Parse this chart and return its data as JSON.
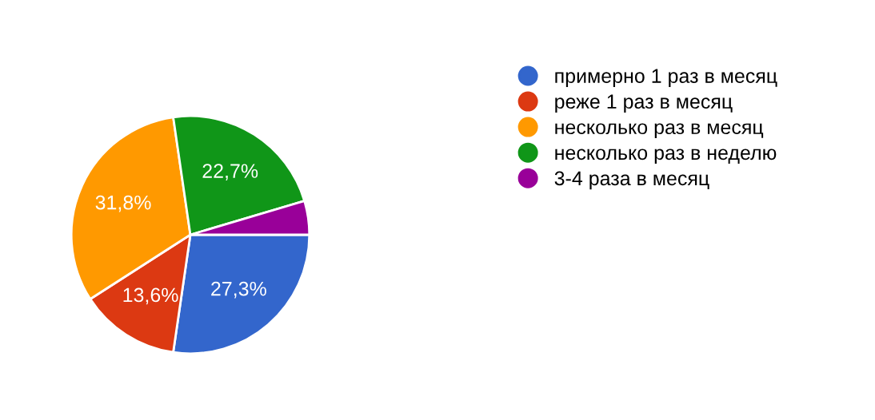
{
  "chart_data": {
    "type": "pie",
    "categories": [
      "примерно 1 раз в месяц",
      "реже 1 раз в месяц",
      "несколько раз в месяц",
      "несколько раз в неделю",
      "3-4 раза в месяц"
    ],
    "values": [
      27.3,
      13.6,
      31.8,
      22.7,
      4.6
    ],
    "colors": [
      "#3366cc",
      "#dc3912",
      "#ff9900",
      "#109618",
      "#990099"
    ],
    "value_labels": [
      "27,3%",
      "13,6%",
      "31,8%",
      "22,7%",
      null
    ],
    "legend": "right"
  }
}
